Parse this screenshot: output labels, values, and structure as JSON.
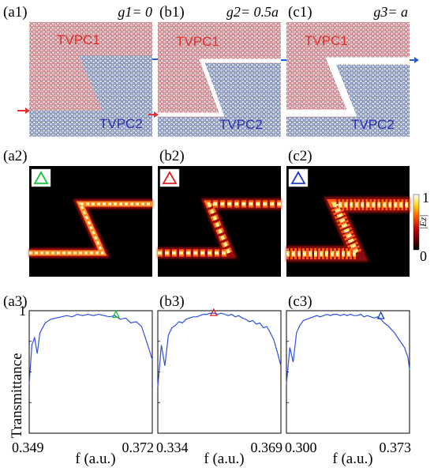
{
  "row1": {
    "panels": [
      {
        "id": "a1",
        "label": "(a1)",
        "g_label": "g1= 0",
        "tvpc1": "TVPC1",
        "tvpc2": "TVPC2",
        "gap": 0
      },
      {
        "id": "b1",
        "label": "(b1)",
        "g_label": "g2= 0.5a",
        "tvpc1": "TVPC1",
        "tvpc2": "TVPC2",
        "gap": 0.5
      },
      {
        "id": "c1",
        "label": "(c1)",
        "g_label": "g3= a",
        "tvpc1": "TVPC1",
        "tvpc2": "TVPC2",
        "gap": 1
      }
    ],
    "colors": {
      "tvpc1": "#c9898e",
      "tvpc2": "#8f9fbf",
      "input_arrow": "#e03030",
      "output_arrow": "#2060d0"
    }
  },
  "row2": {
    "panels": [
      {
        "id": "a2",
        "label": "(a2)",
        "marker_color": "#19c23a"
      },
      {
        "id": "b2",
        "label": "(b2)",
        "marker_color": "#e02020"
      },
      {
        "id": "c2",
        "label": "(c2)",
        "marker_color": "#1a3cc8"
      }
    ],
    "colorbar": {
      "label": "|Ez|",
      "max_label": "1",
      "min_label": "0"
    }
  },
  "chart_data": [
    {
      "type": "line",
      "id": "a3",
      "label": "(a3)",
      "ylabel": "Transmittance",
      "xlabel": "f (a.u.)",
      "x_ticks": [
        "0.349",
        "0.372"
      ],
      "xlim": [
        0.349,
        0.372
      ],
      "ylim": [
        0,
        1
      ],
      "y_tick_top": "1",
      "marker": {
        "x": 0.3652,
        "y": 0.965,
        "color": "#19c23a"
      },
      "x": [
        0.349,
        0.3495,
        0.35,
        0.3505,
        0.351,
        0.3515,
        0.352,
        0.353,
        0.354,
        0.355,
        0.356,
        0.357,
        0.358,
        0.359,
        0.36,
        0.361,
        0.362,
        0.363,
        0.364,
        0.365,
        0.366,
        0.367,
        0.368,
        0.369,
        0.37,
        0.371,
        0.372
      ],
      "y": [
        0.4,
        0.72,
        0.78,
        0.65,
        0.82,
        0.86,
        0.9,
        0.93,
        0.94,
        0.95,
        0.96,
        0.95,
        0.97,
        0.96,
        0.97,
        0.96,
        0.97,
        0.96,
        0.95,
        0.96,
        0.93,
        0.94,
        0.9,
        0.91,
        0.87,
        0.74,
        0.6
      ],
      "color": "#2c50e0"
    },
    {
      "type": "line",
      "id": "b3",
      "label": "(b3)",
      "ylabel": "",
      "xlabel": "f (a.u.)",
      "x_ticks": [
        "0.334",
        "0.369"
      ],
      "xlim": [
        0.334,
        0.369
      ],
      "ylim": [
        0,
        1
      ],
      "marker": {
        "x": 0.3499,
        "y": 0.98,
        "color": "#e02020"
      },
      "x": [
        0.334,
        0.335,
        0.336,
        0.337,
        0.338,
        0.339,
        0.34,
        0.341,
        0.342,
        0.343,
        0.344,
        0.345,
        0.346,
        0.347,
        0.348,
        0.349,
        0.35,
        0.351,
        0.352,
        0.353,
        0.354,
        0.355,
        0.356,
        0.357,
        0.358,
        0.359,
        0.36,
        0.361,
        0.362,
        0.363,
        0.364,
        0.365,
        0.366,
        0.367,
        0.368,
        0.369
      ],
      "y": [
        0.38,
        0.72,
        0.55,
        0.8,
        0.86,
        0.88,
        0.91,
        0.9,
        0.93,
        0.94,
        0.95,
        0.95,
        0.96,
        0.97,
        0.97,
        0.98,
        0.98,
        0.97,
        0.98,
        0.97,
        0.96,
        0.97,
        0.95,
        0.96,
        0.94,
        0.93,
        0.91,
        0.92,
        0.89,
        0.9,
        0.86,
        0.87,
        0.82,
        0.76,
        0.66,
        0.55
      ],
      "color": "#2c50e0"
    },
    {
      "type": "line",
      "id": "c3",
      "label": "(c3)",
      "ylabel": "",
      "xlabel": "f (a.u.)",
      "x_ticks": [
        "0.300",
        "0.373"
      ],
      "xlim": [
        0.3,
        0.373
      ],
      "ylim": [
        0,
        1
      ],
      "marker": {
        "x": 0.356,
        "y": 0.955,
        "color": "#1a3cc8"
      },
      "x": [
        0.3,
        0.302,
        0.304,
        0.306,
        0.308,
        0.31,
        0.312,
        0.314,
        0.316,
        0.318,
        0.32,
        0.322,
        0.324,
        0.326,
        0.328,
        0.33,
        0.332,
        0.334,
        0.336,
        0.338,
        0.34,
        0.342,
        0.344,
        0.346,
        0.348,
        0.35,
        0.352,
        0.354,
        0.356,
        0.358,
        0.36,
        0.362,
        0.364,
        0.366,
        0.368,
        0.37,
        0.372,
        0.373
      ],
      "y": [
        0.4,
        0.7,
        0.58,
        0.82,
        0.88,
        0.92,
        0.93,
        0.94,
        0.95,
        0.96,
        0.95,
        0.96,
        0.97,
        0.96,
        0.97,
        0.97,
        0.96,
        0.97,
        0.96,
        0.97,
        0.96,
        0.96,
        0.97,
        0.95,
        0.96,
        0.95,
        0.94,
        0.95,
        0.93,
        0.9,
        0.88,
        0.85,
        0.82,
        0.78,
        0.74,
        0.7,
        0.62,
        0.52
      ],
      "color": "#2c50e0"
    }
  ]
}
